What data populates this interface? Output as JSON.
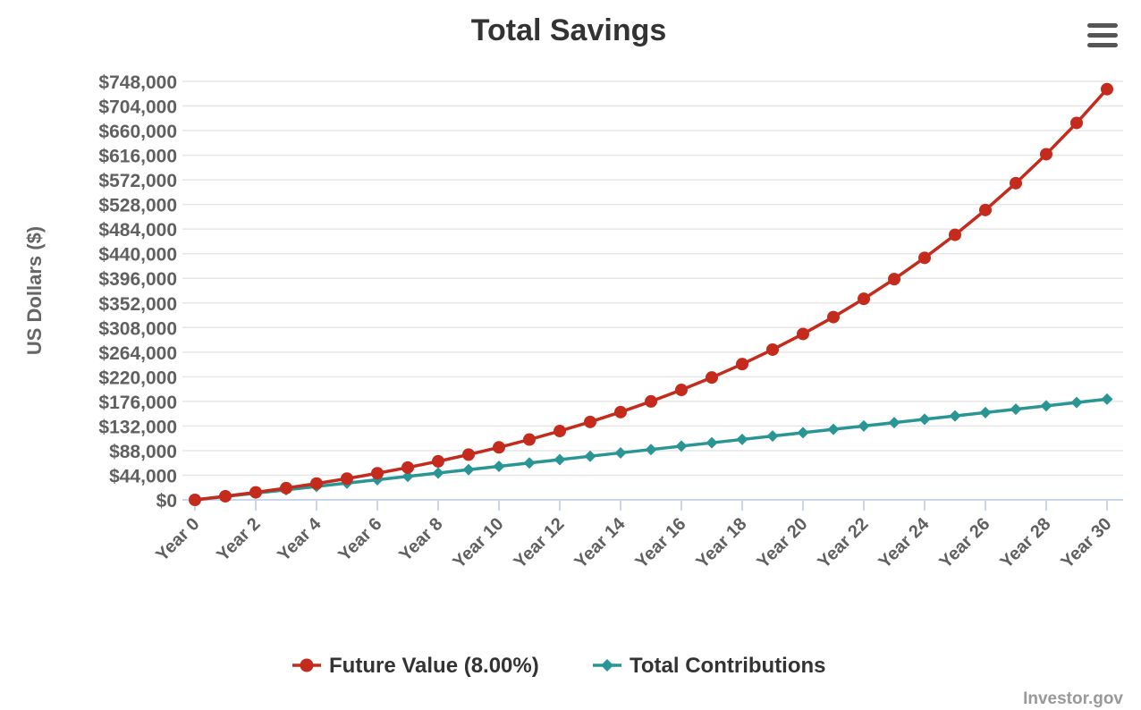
{
  "chart_data": {
    "type": "line",
    "title": "Total Savings",
    "xlabel": "",
    "ylabel": "US Dollars ($)",
    "ylim": [
      0,
      748000
    ],
    "y_ticks": [
      0,
      44000,
      88000,
      132000,
      176000,
      220000,
      264000,
      308000,
      352000,
      396000,
      440000,
      484000,
      528000,
      572000,
      616000,
      660000,
      704000,
      748000
    ],
    "y_tick_labels": [
      "$0",
      "$44,000",
      "$88,000",
      "$132,000",
      "$176,000",
      "$220,000",
      "$264,000",
      "$308,000",
      "$352,000",
      "$396,000",
      "$440,000",
      "$484,000",
      "$528,000",
      "$572,000",
      "$616,000",
      "$660,000",
      "$704,000",
      "$748,000"
    ],
    "x_tick_labels": [
      "Year 0",
      "Year 2",
      "Year 4",
      "Year 6",
      "Year 8",
      "Year 10",
      "Year 12",
      "Year 14",
      "Year 16",
      "Year 18",
      "Year 20",
      "Year 22",
      "Year 24",
      "Year 26",
      "Year 28",
      "Year 30"
    ],
    "x": [
      0,
      1,
      2,
      3,
      4,
      5,
      6,
      7,
      8,
      9,
      10,
      11,
      12,
      13,
      14,
      15,
      16,
      17,
      18,
      19,
      20,
      21,
      22,
      23,
      24,
      25,
      26,
      27,
      28,
      29,
      30
    ],
    "series": [
      {
        "name": "Future Value (8.00%)",
        "color": "#c42b1c",
        "marker": "circle",
        "values": [
          0,
          6480,
          13478,
          21037,
          29200,
          38016,
          47537,
          57820,
          68926,
          80920,
          93873,
          107863,
          122972,
          139290,
          156913,
          175946,
          196501,
          218702,
          242678,
          268572,
          296538,
          326741,
          359361,
          394590,
          432637,
          473728,
          518106,
          566034,
          617797,
          673700,
          734076
        ]
      },
      {
        "name": "Total Contributions",
        "color": "#2a9595",
        "marker": "diamond",
        "values": [
          0,
          6000,
          12000,
          18000,
          24000,
          30000,
          36000,
          42000,
          48000,
          54000,
          60000,
          66000,
          72000,
          78000,
          84000,
          90000,
          96000,
          102000,
          108000,
          114000,
          120000,
          126000,
          132000,
          138000,
          144000,
          150000,
          156000,
          162000,
          168000,
          174000,
          180000
        ]
      }
    ],
    "grid": true,
    "legend_position": "bottom-center"
  },
  "credits": "Investor.gov",
  "menu_icon": "hamburger-menu-icon",
  "colors": {
    "grid": "#e6e6e6",
    "axis": "#ccd6eb",
    "title": "#333333",
    "tick": "#606060"
  }
}
